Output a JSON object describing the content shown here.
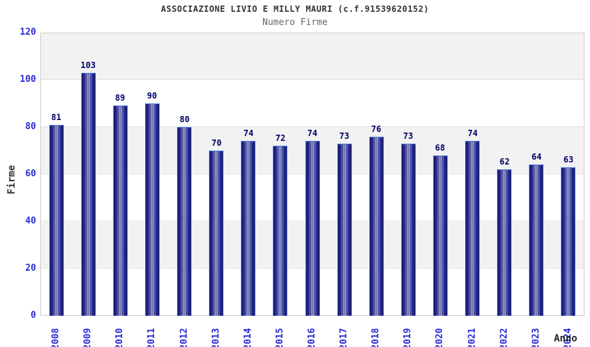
{
  "header": {
    "title": "ASSOCIAZIONE LIVIO E MILLY MAURI (c.f.91539620152)",
    "subtitle": "Numero Firme"
  },
  "chart_data": {
    "type": "bar",
    "title": "ASSOCIAZIONE LIVIO E MILLY MAURI (c.f.91539620152)",
    "subtitle": "Numero Firme",
    "xlabel": "Anno",
    "ylabel": "Firme",
    "categories": [
      "2008",
      "2009",
      "2010",
      "2011",
      "2012",
      "2013",
      "2014",
      "2015",
      "2016",
      "2017",
      "2018",
      "2019",
      "2020",
      "2021",
      "2022",
      "2023",
      "2024"
    ],
    "values": [
      81,
      103,
      89,
      90,
      80,
      70,
      74,
      72,
      74,
      73,
      76,
      73,
      68,
      74,
      62,
      64,
      63
    ],
    "ylim": [
      0,
      120
    ],
    "yticks": [
      0,
      20,
      40,
      60,
      80,
      100,
      120
    ],
    "grid": "horizontal-bands",
    "legend": "none",
    "colors": {
      "bar_dark": "#14147a",
      "bar_mid": "#2c2c94",
      "bar_light": "#9aa6d8",
      "bar_border": "#4a7fe0",
      "axis_tick_blue": "#2b2bd4",
      "value_label_navy": "#00006a",
      "band_gray": "#f2f2f2",
      "band_white": "#ffffff",
      "gridline": "#e2e2e2",
      "plot_border": "#cccccc",
      "title_color": "#333333",
      "subtitle_color": "#666666"
    }
  }
}
